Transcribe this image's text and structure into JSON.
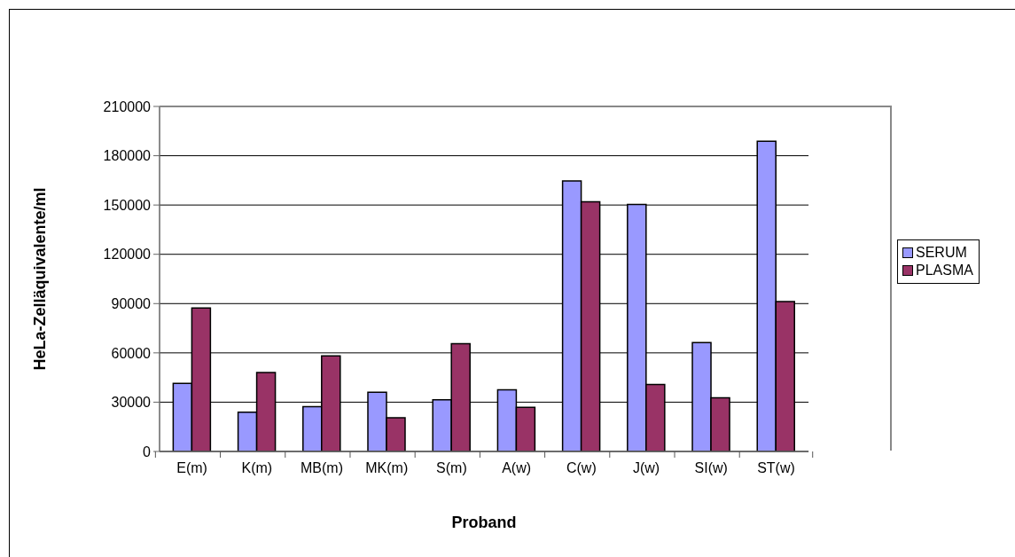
{
  "chart_data": {
    "type": "bar",
    "xlabel": "Proband",
    "ylabel": "HeLa-Zelläquivalente/ml",
    "categories": [
      "E(m)",
      "K(m)",
      "MB(m)",
      "MK(m)",
      "S(m)",
      "A(w)",
      "C(w)",
      "J(w)",
      "SI(w)",
      "ST(w)"
    ],
    "series": [
      {
        "name": "SERUM",
        "color": "#9999ff",
        "values": [
          41500,
          23900,
          27300,
          36100,
          31400,
          37500,
          164600,
          150400,
          66300,
          188800
        ]
      },
      {
        "name": "PLASMA",
        "color": "#993366",
        "values": [
          87300,
          48000,
          58200,
          20500,
          65600,
          26900,
          152000,
          40800,
          32700,
          91300
        ]
      }
    ],
    "ylim": [
      0,
      210000
    ],
    "yticks": [
      0,
      30000,
      60000,
      90000,
      120000,
      150000,
      180000,
      210000
    ],
    "grid": "y",
    "legend": "right"
  }
}
